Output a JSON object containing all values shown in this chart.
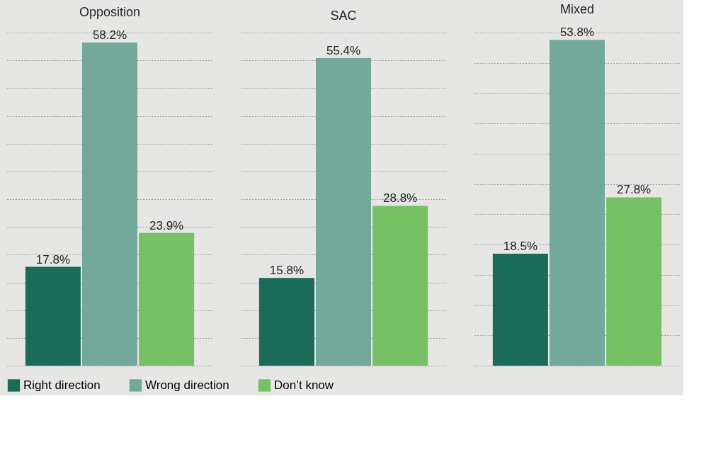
{
  "chart_data": [
    {
      "type": "bar",
      "title": "Opposition",
      "categories": [
        null
      ],
      "series": [
        {
          "name": "Right direction",
          "color": "#1a6b57",
          "values": [
            17.8
          ],
          "value_labels": [
            "17.8%"
          ]
        },
        {
          "name": "Wrong direction",
          "color": "#72a99b",
          "values": [
            58.2
          ],
          "value_labels": [
            "58.2%"
          ]
        },
        {
          "name": "Don’t know",
          "color": "#77c066",
          "values": [
            23.9
          ],
          "value_labels": [
            "23.9%"
          ]
        }
      ],
      "grid": "y",
      "tick_labels": false,
      "legend": "bottom"
    },
    {
      "type": "bar",
      "title": "SAC",
      "categories": [
        null
      ],
      "series": [
        {
          "name": "Right direction",
          "color": "#1a6b57",
          "values": [
            15.8
          ],
          "value_labels": [
            "15.8%"
          ]
        },
        {
          "name": "Wrong direction",
          "color": "#72a99b",
          "values": [
            55.4
          ],
          "value_labels": [
            "55.4%"
          ]
        },
        {
          "name": "Don’t know",
          "color": "#77c066",
          "values": [
            28.8
          ],
          "value_labels": [
            "28.8%"
          ]
        }
      ],
      "grid": "y",
      "tick_labels": false,
      "legend": "bottom"
    },
    {
      "type": "bar",
      "title": "Mixed",
      "categories": [
        null
      ],
      "series": [
        {
          "name": "Right direction",
          "color": "#1a6b57",
          "values": [
            18.5
          ],
          "value_labels": [
            "18.5%"
          ]
        },
        {
          "name": "Wrong direction",
          "color": "#72a99b",
          "values": [
            53.8
          ],
          "value_labels": [
            "53.8%"
          ]
        },
        {
          "name": "Don’t know",
          "color": "#77c066",
          "values": [
            27.8
          ],
          "value_labels": [
            "27.8%"
          ]
        }
      ],
      "grid": "y",
      "tick_labels": false,
      "legend": "bottom"
    }
  ]
}
